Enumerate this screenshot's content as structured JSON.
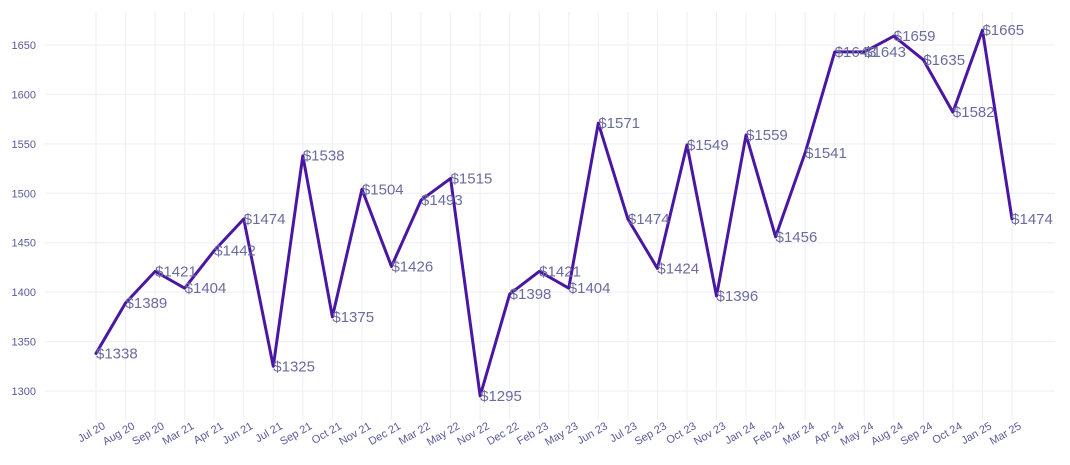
{
  "chart_data": {
    "type": "line",
    "title": "",
    "xlabel": "",
    "ylabel": "",
    "ylim": [
      1280,
      1690
    ],
    "yticks": [
      1300,
      1350,
      1400,
      1450,
      1500,
      1550,
      1600,
      1650
    ],
    "grid": true,
    "legend": "none",
    "line_color": "#4a17a3",
    "value_prefix": "$",
    "categories": [
      "Jul 20",
      "Aug 20",
      "Sep 20",
      "Mar 21",
      "Apr 21",
      "Jun 21",
      "Jul 21",
      "Sep 21",
      "Oct 21",
      "Nov 21",
      "Dec 21",
      "Mar 22",
      "May 22",
      "Nov 22",
      "Dec 22",
      "Feb 23",
      "May 23",
      "Jun 23",
      "Jul 23",
      "Sep 23",
      "Oct 23",
      "Nov 23",
      "Jan 24",
      "Feb 24",
      "Mar 24",
      "Apr 24",
      "May 24",
      "Aug 24",
      "Sep 24",
      "Oct 24",
      "Jan 25",
      "Mar 25"
    ],
    "values": [
      1338,
      1389,
      1421,
      1404,
      1442,
      1474,
      1325,
      1538,
      1375,
      1504,
      1426,
      1493,
      1515,
      1295,
      1398,
      1421,
      1404,
      1571,
      1474,
      1424,
      1549,
      1396,
      1559,
      1456,
      1541,
      1643,
      1643,
      1659,
      1635,
      1582,
      1665,
      1474
    ]
  }
}
